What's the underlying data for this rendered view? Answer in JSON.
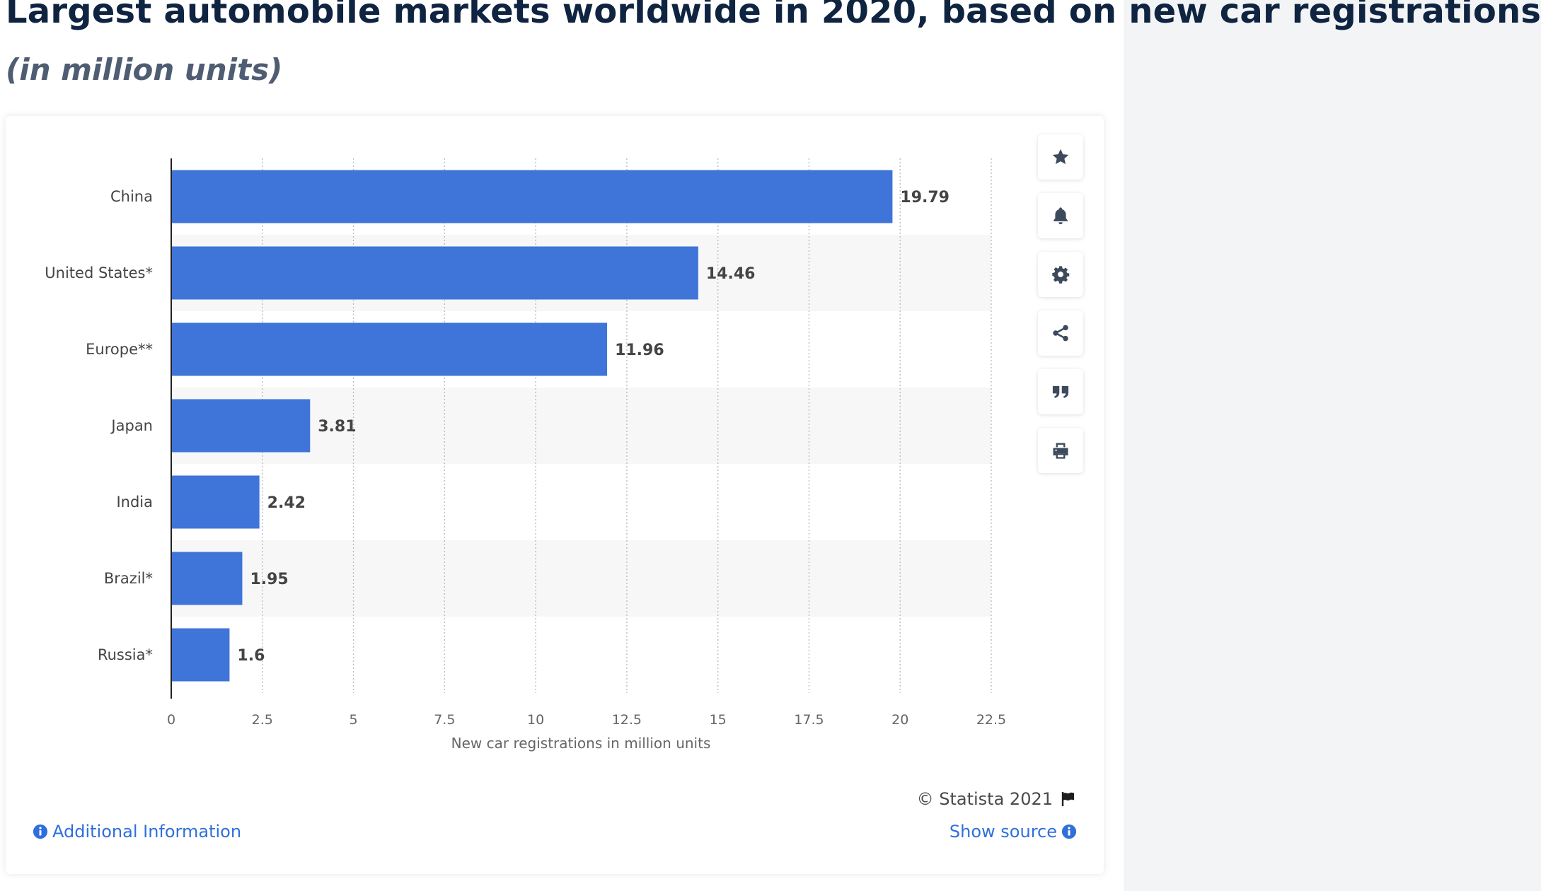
{
  "header": {
    "title": "Largest automobile markets worldwide in 2020, based on new car registrations",
    "subtitle": "(in million units)"
  },
  "toolbar": {
    "buttons": [
      {
        "name": "favorite-button",
        "icon": "star-icon"
      },
      {
        "name": "notification-button",
        "icon": "bell-icon"
      },
      {
        "name": "settings-button",
        "icon": "gear-icon"
      },
      {
        "name": "share-button",
        "icon": "share-icon"
      },
      {
        "name": "cite-button",
        "icon": "quote-icon"
      },
      {
        "name": "print-button",
        "icon": "printer-icon"
      }
    ]
  },
  "footer": {
    "copyright": "© Statista 2021",
    "additional_info": "Additional Information",
    "show_source": "Show source"
  },
  "colors": {
    "bar": "#3f74d8",
    "title": "#0f2440",
    "link": "#2f6fdc",
    "icon": "#3d4a5c",
    "band": "#f7f7f7"
  },
  "chart_data": {
    "type": "bar",
    "orientation": "horizontal",
    "categories": [
      "China",
      "United States*",
      "Europe**",
      "Japan",
      "India",
      "Brazil*",
      "Russia*"
    ],
    "values": [
      19.79,
      14.46,
      11.96,
      3.81,
      2.42,
      1.95,
      1.6
    ],
    "value_labels": [
      "19.79",
      "14.46",
      "11.96",
      "3.81",
      "2.42",
      "1.95",
      "1.6"
    ],
    "xlabel": "New car registrations in million units",
    "xlim": [
      0,
      22.5
    ],
    "xticks": [
      0,
      2.5,
      5,
      7.5,
      10,
      12.5,
      15,
      17.5,
      20,
      22.5
    ],
    "xtick_labels": [
      "0",
      "2.5",
      "5",
      "7.5",
      "10",
      "12.5",
      "15",
      "17.5",
      "20",
      "22.5"
    ],
    "grid": true
  }
}
